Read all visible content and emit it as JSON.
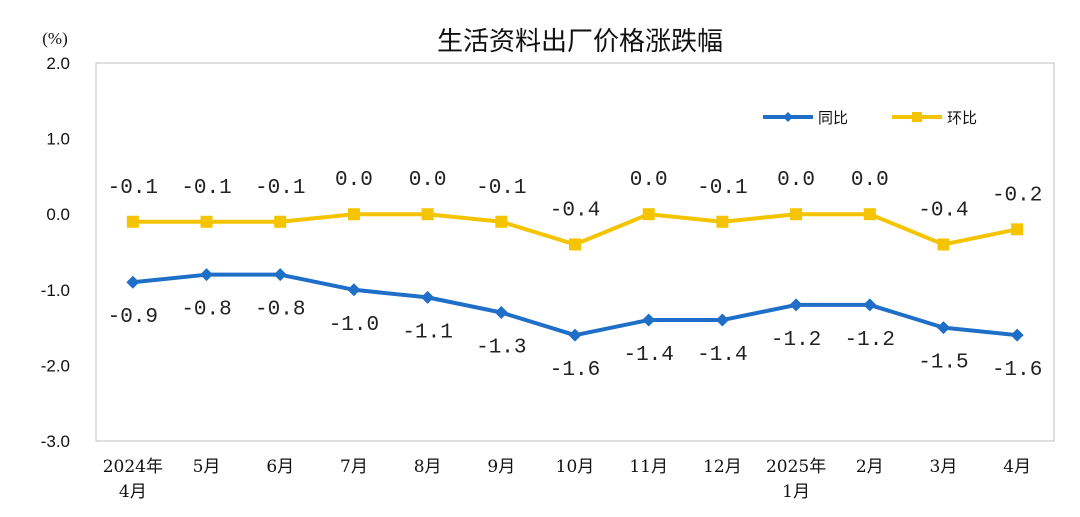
{
  "chart_data": {
    "type": "line",
    "title": "生活资料出厂价格涨跌幅",
    "unit_label": "(%)",
    "ylim": [
      -3.0,
      2.0
    ],
    "y_ticks": [
      "2.0",
      "1.0",
      "0.0",
      "-1.0",
      "-2.0",
      "-3.0"
    ],
    "categories": [
      [
        "2024年",
        "4月"
      ],
      [
        "5月"
      ],
      [
        "6月"
      ],
      [
        "7月"
      ],
      [
        "8月"
      ],
      [
        "9月"
      ],
      [
        "10月"
      ],
      [
        "11月"
      ],
      [
        "12月"
      ],
      [
        "2025年",
        "1月"
      ],
      [
        "2月"
      ],
      [
        "3月"
      ],
      [
        "4月"
      ]
    ],
    "legend_position": "top-right",
    "grid": false,
    "series": [
      {
        "name": "同比",
        "color": "#1f6fc8",
        "marker": "diamond",
        "values": [
          -0.9,
          -0.8,
          -0.8,
          -1.0,
          -1.1,
          -1.3,
          -1.6,
          -1.4,
          -1.4,
          -1.2,
          -1.2,
          -1.5,
          -1.6
        ],
        "labels": [
          "-0.9",
          "-0.8",
          "-0.8",
          "-1.0",
          "-1.1",
          "-1.3",
          "-1.6",
          "-1.4",
          "-1.4",
          "-1.2",
          "-1.2",
          "-1.5",
          "-1.6"
        ]
      },
      {
        "name": "环比",
        "color": "#f5c400",
        "marker": "square",
        "values": [
          -0.1,
          -0.1,
          -0.1,
          0.0,
          0.0,
          -0.1,
          -0.4,
          0.0,
          -0.1,
          0.0,
          0.0,
          -0.4,
          -0.2
        ],
        "labels": [
          "-0.1",
          "-0.1",
          "-0.1",
          "0.0",
          "0.0",
          "-0.1",
          "-0.4",
          "0.0",
          "-0.1",
          "0.0",
          "0.0",
          "-0.4",
          "-0.2"
        ]
      }
    ]
  }
}
